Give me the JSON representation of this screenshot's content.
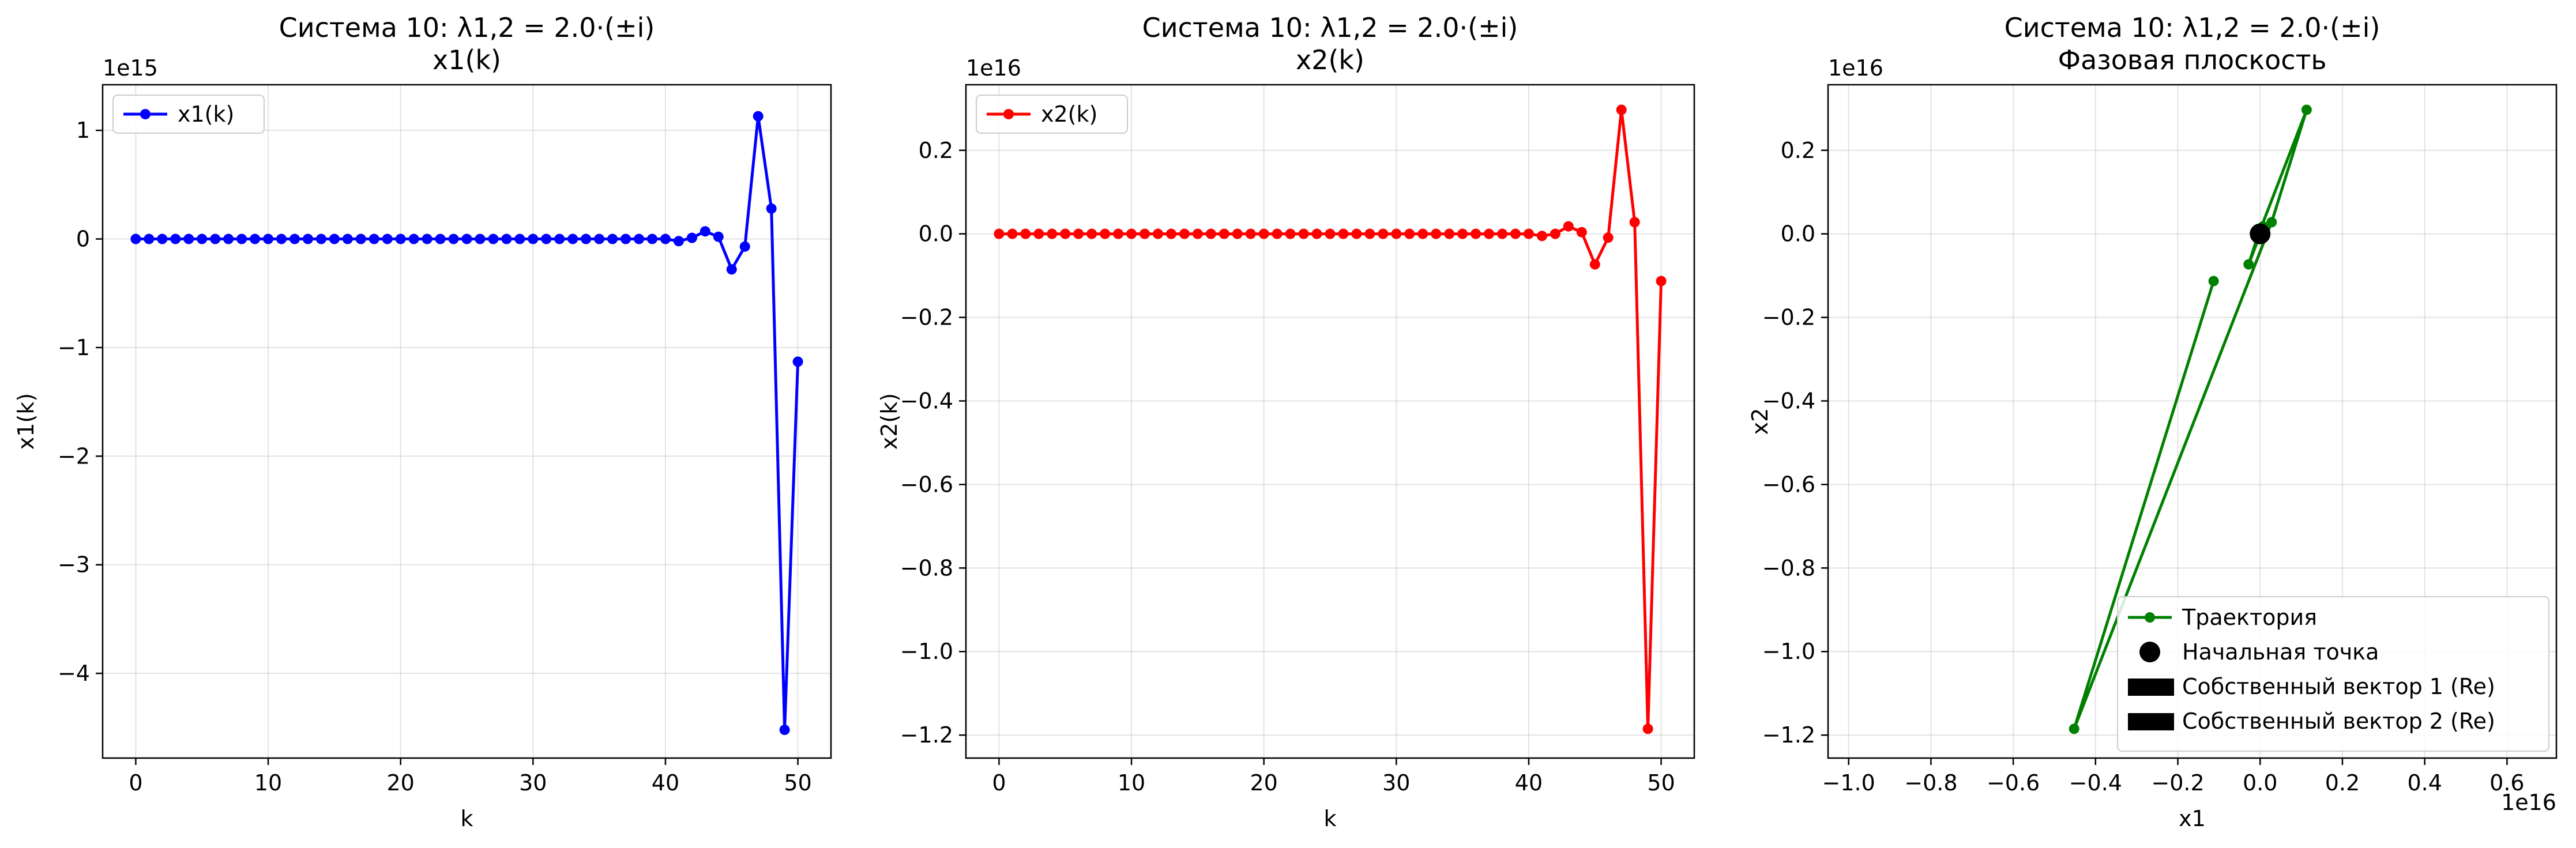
{
  "chart_data": [
    {
      "type": "line",
      "title": "Система 10: λ1,2 = 2.0·(±i)",
      "subtitle": "x1(k)",
      "xlabel": "k",
      "ylabel": "x1(k)",
      "offset_label": "1e15",
      "xlim": [
        -2.5,
        52.5
      ],
      "ylim": [
        -4.78,
        1.42
      ],
      "xticks": [
        0,
        10,
        20,
        30,
        40,
        50
      ],
      "xtick_labels": [
        "0",
        "10",
        "20",
        "30",
        "40",
        "50"
      ],
      "yticks": [
        -4,
        -3,
        -2,
        -1,
        0,
        1
      ],
      "ytick_labels": [
        "−4",
        "−3",
        "−2",
        "−1",
        "0",
        "1"
      ],
      "grid": true,
      "legend_position": "top-left",
      "series": [
        {
          "name": "x1(k)",
          "color": "#0000ff",
          "marker": "circle",
          "x": [
            0,
            1,
            2,
            3,
            4,
            5,
            6,
            7,
            8,
            9,
            10,
            11,
            12,
            13,
            14,
            15,
            16,
            17,
            18,
            19,
            20,
            21,
            22,
            23,
            24,
            25,
            26,
            27,
            28,
            29,
            30,
            31,
            32,
            33,
            34,
            35,
            36,
            37,
            38,
            39,
            40,
            41,
            42,
            43,
            44,
            45,
            46,
            47,
            48,
            49,
            50
          ],
          "y": [
            0,
            0,
            0,
            0,
            0,
            0,
            0,
            0,
            0,
            0,
            0,
            0,
            0,
            0,
            0,
            0,
            0,
            0,
            0,
            0,
            0,
            0,
            0,
            0,
            0,
            0,
            0,
            0,
            0,
            0,
            0,
            0,
            0,
            0,
            0,
            0,
            0,
            0,
            0,
            0,
            0.0,
            -0.02,
            0.01,
            0.07,
            0.02,
            -0.28,
            -0.07,
            1.13,
            0.28,
            -4.52,
            -1.13
          ]
        }
      ]
    },
    {
      "type": "line",
      "title": "Система 10: λ1,2 = 2.0·(±i)",
      "subtitle": "x2(k)",
      "xlabel": "k",
      "ylabel": "x2(k)",
      "offset_label": "1e16",
      "xlim": [
        -2.5,
        52.5
      ],
      "ylim": [
        -1.255,
        0.357
      ],
      "xticks": [
        0,
        10,
        20,
        30,
        40,
        50
      ],
      "xtick_labels": [
        "0",
        "10",
        "20",
        "30",
        "40",
        "50"
      ],
      "yticks": [
        -1.2,
        -1.0,
        -0.8,
        -0.6,
        -0.4,
        -0.2,
        0.0,
        0.2
      ],
      "ytick_labels": [
        "−1.2",
        "−1.0",
        "−0.8",
        "−0.6",
        "−0.4",
        "−0.2",
        "0.0",
        "0.2"
      ],
      "grid": true,
      "legend_position": "top-left",
      "series": [
        {
          "name": "x2(k)",
          "color": "#ff0000",
          "marker": "circle",
          "x": [
            0,
            1,
            2,
            3,
            4,
            5,
            6,
            7,
            8,
            9,
            10,
            11,
            12,
            13,
            14,
            15,
            16,
            17,
            18,
            19,
            20,
            21,
            22,
            23,
            24,
            25,
            26,
            27,
            28,
            29,
            30,
            31,
            32,
            33,
            34,
            35,
            36,
            37,
            38,
            39,
            40,
            41,
            42,
            43,
            44,
            45,
            46,
            47,
            48,
            49,
            50
          ],
          "y": [
            0,
            0,
            0,
            0,
            0,
            0,
            0,
            0,
            0,
            0,
            0,
            0,
            0,
            0,
            0,
            0,
            0,
            0,
            0,
            0,
            0,
            0,
            0,
            0,
            0,
            0,
            0,
            0,
            0,
            0,
            0,
            0,
            0,
            0,
            0,
            0,
            0,
            0,
            0,
            0,
            0.0,
            -0.005,
            0.0,
            0.018,
            0.004,
            -0.073,
            -0.009,
            0.297,
            0.028,
            -1.185,
            -0.113
          ]
        }
      ]
    },
    {
      "type": "line",
      "title": "Система 10: λ1,2 = 2.0·(±i)",
      "subtitle": "Фазовая плоскость",
      "xlabel": "x1",
      "ylabel": "x2",
      "offset_label_x": "1e16",
      "offset_label_y": "1e16",
      "xlim": [
        -1.05,
        0.72
      ],
      "ylim": [
        -1.255,
        0.357
      ],
      "xticks": [
        -1.0,
        -0.8,
        -0.6,
        -0.4,
        -0.2,
        0.0,
        0.2,
        0.4,
        0.6
      ],
      "xtick_labels": [
        "−1.0",
        "−0.8",
        "−0.6",
        "−0.4",
        "−0.2",
        "0.0",
        "0.2",
        "0.4",
        "0.6"
      ],
      "yticks": [
        -1.2,
        -1.0,
        -0.8,
        -0.6,
        -0.4,
        -0.2,
        0.0,
        0.2
      ],
      "ytick_labels": [
        "−1.2",
        "−1.0",
        "−0.8",
        "−0.6",
        "−0.4",
        "−0.2",
        "0.0",
        "0.2"
      ],
      "grid": true,
      "legend_position": "lower-right",
      "series": [
        {
          "name": "Траектория",
          "color": "#008000",
          "marker": "circle",
          "x": [
            0,
            0,
            0,
            0,
            0,
            0,
            0,
            0,
            0,
            0,
            0,
            0,
            0,
            0,
            0,
            0,
            0,
            0,
            0,
            0,
            0,
            0,
            0,
            0,
            0,
            0,
            0,
            0,
            0,
            0,
            0,
            0,
            0,
            0,
            0,
            0,
            0,
            0,
            0,
            0,
            0.0,
            -0.002,
            0.001,
            0.007,
            0.002,
            -0.028,
            -0.007,
            0.113,
            0.028,
            -0.452,
            -0.113
          ],
          "y": [
            0,
            0,
            0,
            0,
            0,
            0,
            0,
            0,
            0,
            0,
            0,
            0,
            0,
            0,
            0,
            0,
            0,
            0,
            0,
            0,
            0,
            0,
            0,
            0,
            0,
            0,
            0,
            0,
            0,
            0,
            0,
            0,
            0,
            0,
            0,
            0,
            0,
            0,
            0,
            0,
            0.0,
            -0.005,
            0.0,
            0.018,
            0.004,
            -0.073,
            -0.009,
            0.297,
            0.028,
            -1.185,
            -0.113
          ]
        }
      ],
      "start_point": {
        "name": "Начальная точка",
        "x": 0.0,
        "y": 0.0,
        "color": "#000000"
      },
      "eigenvectors": [
        {
          "name": "Собственный вектор 1 (Re)",
          "color": "#000000"
        },
        {
          "name": "Собственный вектор 2 (Re)",
          "color": "#000000"
        }
      ]
    }
  ]
}
